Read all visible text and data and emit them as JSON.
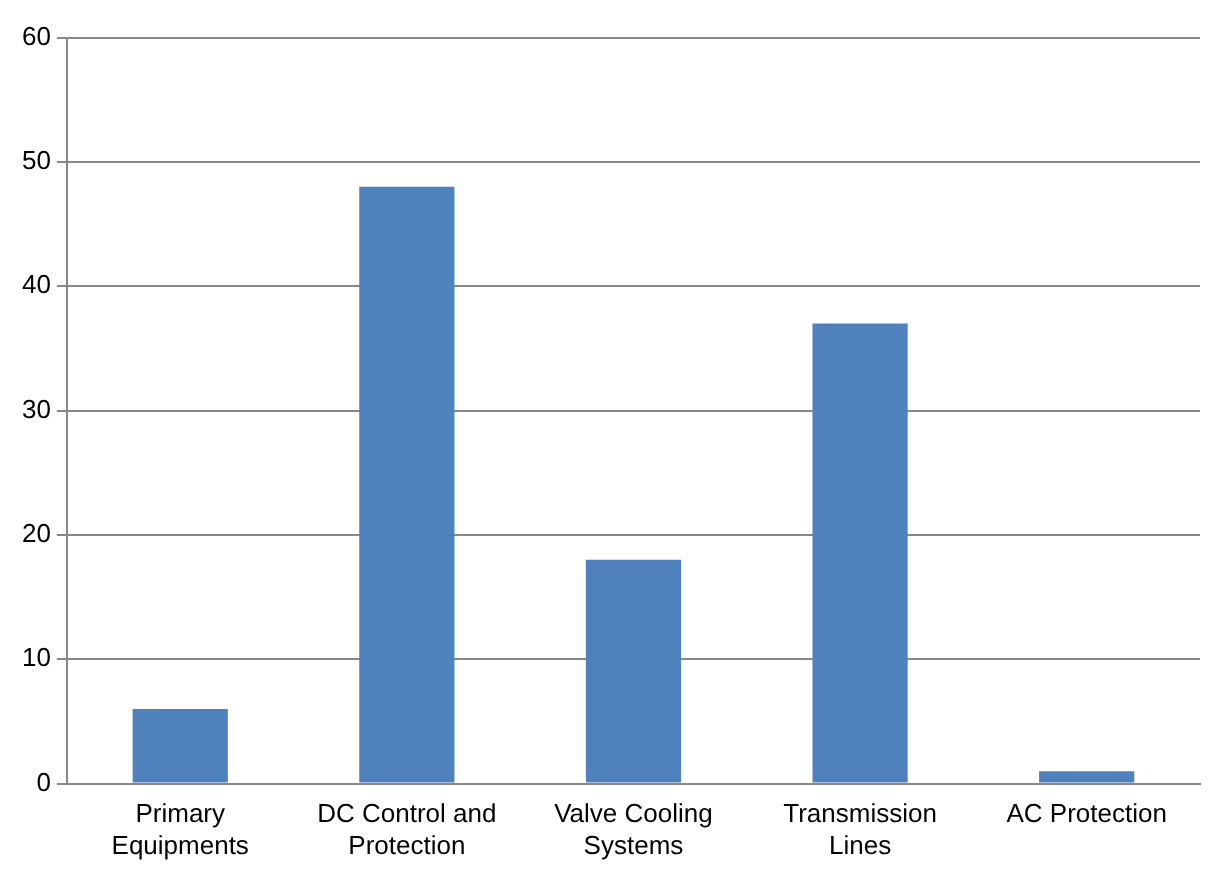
{
  "chart_data": {
    "type": "bar",
    "categories": [
      "Primary Equipments",
      "DC Control and Protection",
      "Valve Cooling Systems",
      "Transmission Lines",
      "AC Protection"
    ],
    "values": [
      6,
      48,
      18,
      37,
      1
    ],
    "color": "#4f81bd",
    "ylim": [
      0,
      60
    ],
    "yticks": [
      0,
      10,
      20,
      30,
      40,
      50,
      60
    ],
    "grid": "y",
    "legend": false
  }
}
